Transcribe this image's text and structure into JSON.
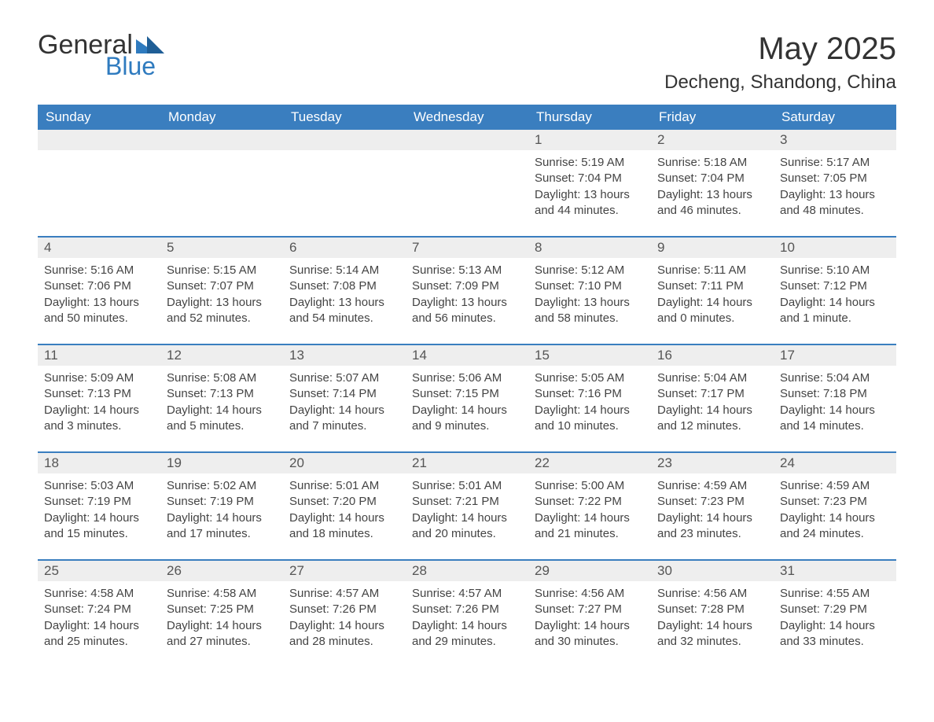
{
  "logo": {
    "general": "General",
    "blue": "Blue",
    "flag_color": "#2f7bbf"
  },
  "title": "May 2025",
  "location": "Decheng, Shandong, China",
  "colors": {
    "header_bg": "#3a7ebf",
    "header_text": "#ffffff",
    "daynum_bg": "#eeeeee",
    "row_divider": "#3a7ebf",
    "body_text": "#444444",
    "page_bg": "#ffffff"
  },
  "typography": {
    "title_fontsize": 40,
    "location_fontsize": 24,
    "header_fontsize": 17,
    "daynum_fontsize": 17,
    "detail_fontsize": 15
  },
  "day_headers": [
    "Sunday",
    "Monday",
    "Tuesday",
    "Wednesday",
    "Thursday",
    "Friday",
    "Saturday"
  ],
  "weeks": [
    [
      null,
      null,
      null,
      null,
      {
        "n": "1",
        "sunrise": "5:19 AM",
        "sunset": "7:04 PM",
        "daylight": "13 hours and 44 minutes."
      },
      {
        "n": "2",
        "sunrise": "5:18 AM",
        "sunset": "7:04 PM",
        "daylight": "13 hours and 46 minutes."
      },
      {
        "n": "3",
        "sunrise": "5:17 AM",
        "sunset": "7:05 PM",
        "daylight": "13 hours and 48 minutes."
      }
    ],
    [
      {
        "n": "4",
        "sunrise": "5:16 AM",
        "sunset": "7:06 PM",
        "daylight": "13 hours and 50 minutes."
      },
      {
        "n": "5",
        "sunrise": "5:15 AM",
        "sunset": "7:07 PM",
        "daylight": "13 hours and 52 minutes."
      },
      {
        "n": "6",
        "sunrise": "5:14 AM",
        "sunset": "7:08 PM",
        "daylight": "13 hours and 54 minutes."
      },
      {
        "n": "7",
        "sunrise": "5:13 AM",
        "sunset": "7:09 PM",
        "daylight": "13 hours and 56 minutes."
      },
      {
        "n": "8",
        "sunrise": "5:12 AM",
        "sunset": "7:10 PM",
        "daylight": "13 hours and 58 minutes."
      },
      {
        "n": "9",
        "sunrise": "5:11 AM",
        "sunset": "7:11 PM",
        "daylight": "14 hours and 0 minutes."
      },
      {
        "n": "10",
        "sunrise": "5:10 AM",
        "sunset": "7:12 PM",
        "daylight": "14 hours and 1 minute."
      }
    ],
    [
      {
        "n": "11",
        "sunrise": "5:09 AM",
        "sunset": "7:13 PM",
        "daylight": "14 hours and 3 minutes."
      },
      {
        "n": "12",
        "sunrise": "5:08 AM",
        "sunset": "7:13 PM",
        "daylight": "14 hours and 5 minutes."
      },
      {
        "n": "13",
        "sunrise": "5:07 AM",
        "sunset": "7:14 PM",
        "daylight": "14 hours and 7 minutes."
      },
      {
        "n": "14",
        "sunrise": "5:06 AM",
        "sunset": "7:15 PM",
        "daylight": "14 hours and 9 minutes."
      },
      {
        "n": "15",
        "sunrise": "5:05 AM",
        "sunset": "7:16 PM",
        "daylight": "14 hours and 10 minutes."
      },
      {
        "n": "16",
        "sunrise": "5:04 AM",
        "sunset": "7:17 PM",
        "daylight": "14 hours and 12 minutes."
      },
      {
        "n": "17",
        "sunrise": "5:04 AM",
        "sunset": "7:18 PM",
        "daylight": "14 hours and 14 minutes."
      }
    ],
    [
      {
        "n": "18",
        "sunrise": "5:03 AM",
        "sunset": "7:19 PM",
        "daylight": "14 hours and 15 minutes."
      },
      {
        "n": "19",
        "sunrise": "5:02 AM",
        "sunset": "7:19 PM",
        "daylight": "14 hours and 17 minutes."
      },
      {
        "n": "20",
        "sunrise": "5:01 AM",
        "sunset": "7:20 PM",
        "daylight": "14 hours and 18 minutes."
      },
      {
        "n": "21",
        "sunrise": "5:01 AM",
        "sunset": "7:21 PM",
        "daylight": "14 hours and 20 minutes."
      },
      {
        "n": "22",
        "sunrise": "5:00 AM",
        "sunset": "7:22 PM",
        "daylight": "14 hours and 21 minutes."
      },
      {
        "n": "23",
        "sunrise": "4:59 AM",
        "sunset": "7:23 PM",
        "daylight": "14 hours and 23 minutes."
      },
      {
        "n": "24",
        "sunrise": "4:59 AM",
        "sunset": "7:23 PM",
        "daylight": "14 hours and 24 minutes."
      }
    ],
    [
      {
        "n": "25",
        "sunrise": "4:58 AM",
        "sunset": "7:24 PM",
        "daylight": "14 hours and 25 minutes."
      },
      {
        "n": "26",
        "sunrise": "4:58 AM",
        "sunset": "7:25 PM",
        "daylight": "14 hours and 27 minutes."
      },
      {
        "n": "27",
        "sunrise": "4:57 AM",
        "sunset": "7:26 PM",
        "daylight": "14 hours and 28 minutes."
      },
      {
        "n": "28",
        "sunrise": "4:57 AM",
        "sunset": "7:26 PM",
        "daylight": "14 hours and 29 minutes."
      },
      {
        "n": "29",
        "sunrise": "4:56 AM",
        "sunset": "7:27 PM",
        "daylight": "14 hours and 30 minutes."
      },
      {
        "n": "30",
        "sunrise": "4:56 AM",
        "sunset": "7:28 PM",
        "daylight": "14 hours and 32 minutes."
      },
      {
        "n": "31",
        "sunrise": "4:55 AM",
        "sunset": "7:29 PM",
        "daylight": "14 hours and 33 minutes."
      }
    ]
  ],
  "labels": {
    "sunrise": "Sunrise: ",
    "sunset": "Sunset: ",
    "daylight": "Daylight: "
  }
}
